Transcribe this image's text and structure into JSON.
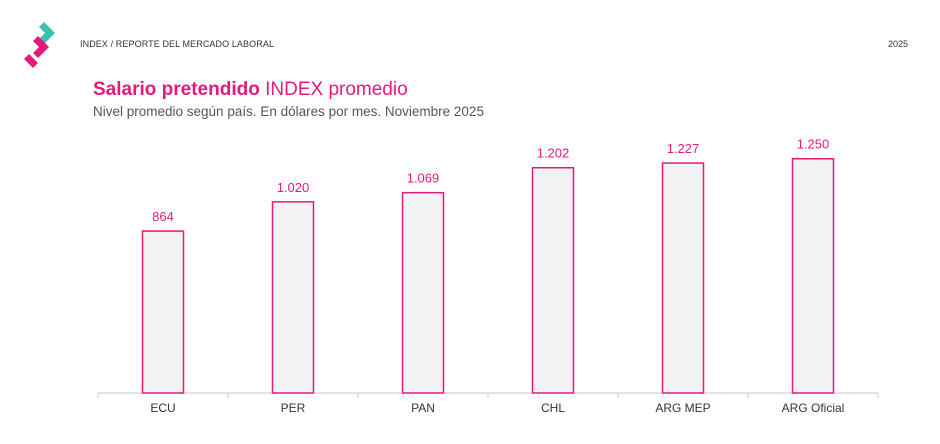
{
  "header": {
    "breadcrumb": "INDEX / REPORTE DEL MERCADO LABORAL",
    "year": "2025"
  },
  "colors": {
    "accent": "#e6197d",
    "teal": "#3dbfb0",
    "bar_fill": "#f2f2f2"
  },
  "chart_data": {
    "type": "bar",
    "title_bold": "Salario pretendido",
    "title_rest": "INDEX promedio",
    "subtitle": "Nivel promedio según país. En dólares por mes. Noviembre 2025",
    "categories": [
      "ECU",
      "PER",
      "PAN",
      "CHL",
      "ARG MEP",
      "ARG Oficial"
    ],
    "values": [
      864,
      1020,
      1069,
      1202,
      1227,
      1250
    ],
    "value_labels": [
      "864",
      "1.020",
      "1.069",
      "1.202",
      "1.227",
      "1.250"
    ],
    "ylim": [
      0,
      1350
    ],
    "grid": false
  }
}
